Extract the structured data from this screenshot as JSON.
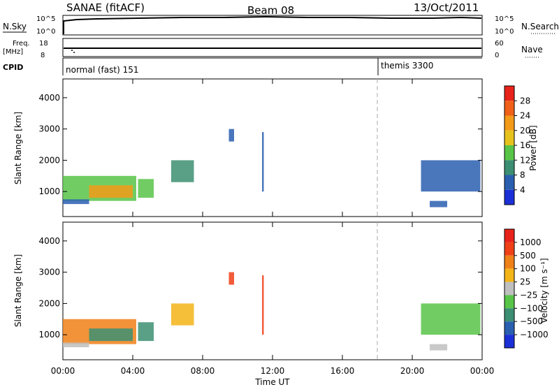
{
  "header": {
    "station": "SANAE (fitACF)",
    "beam": "Beam 08",
    "date": "13/Oct/2011"
  },
  "top_panels": {
    "nsky_label": "N.Sky",
    "nsky_ticks": [
      "10^5",
      "10^0"
    ],
    "nsearch_label": "N.Search",
    "nsearch_ticks": [
      "10^5",
      "10^0"
    ],
    "freq_label": "Freq.",
    "freq_unit": "[MHz]",
    "freq_ticks": [
      "18",
      "8"
    ],
    "nave_label": "Nave",
    "nave_ticks": [
      "60",
      "0"
    ],
    "cpid_label": "CPID",
    "cpid_modes": [
      {
        "text": "normal (fast) 151",
        "start_hour": 0
      },
      {
        "text": "themis 3300",
        "start_hour": 18
      }
    ]
  },
  "chart_data": [
    {
      "type": "heatmap",
      "title": "",
      "quantity": "Power",
      "xlabel": "",
      "ylabel": "Slant Range [km]",
      "xlim": [
        0,
        24
      ],
      "ylim": [
        200,
        4600
      ],
      "y_ticks": [
        1000,
        2000,
        3000,
        4000
      ],
      "colorbar_label": "Power [dB]",
      "colorbar_ticks": [
        "4",
        "8",
        "12",
        "16",
        "20",
        "24",
        "28"
      ],
      "colorbar_colors": [
        "#1b2fd6",
        "#2a5fb0",
        "#3c8f72",
        "#58c448",
        "#e6c21c",
        "#f39a18",
        "#f06018",
        "#e8231a"
      ],
      "regions": [
        {
          "t": [
            0.0,
            4.2
          ],
          "r": [
            700,
            1500
          ],
          "level": 3
        },
        {
          "t": [
            1.5,
            4.0
          ],
          "r": [
            800,
            1200
          ],
          "level": 5
        },
        {
          "t": [
            4.3,
            5.2
          ],
          "r": [
            800,
            1400
          ],
          "level": 3
        },
        {
          "t": [
            6.2,
            7.5
          ],
          "r": [
            1300,
            2000
          ],
          "level": 2
        },
        {
          "t": [
            0.0,
            1.5
          ],
          "r": [
            600,
            750
          ],
          "level": 1
        },
        {
          "t": [
            20.5,
            23.9
          ],
          "r": [
            1000,
            2000
          ],
          "level": 1
        },
        {
          "t": [
            21.0,
            22.0
          ],
          "r": [
            500,
            700
          ],
          "level": 1
        },
        {
          "t": [
            9.5,
            9.8
          ],
          "r": [
            2600,
            3000
          ],
          "level": 1
        },
        {
          "t": [
            11.4,
            11.5
          ],
          "r": [
            1000,
            2900
          ],
          "level": 1
        }
      ]
    },
    {
      "type": "heatmap",
      "title": "",
      "quantity": "Velocity",
      "xlabel": "Time UT",
      "ylabel": "Slant Range [km]",
      "xlim": [
        0,
        24
      ],
      "ylim": [
        200,
        4600
      ],
      "x_ticks": [
        "00:00",
        "04:00",
        "08:00",
        "12:00",
        "16:00",
        "20:00",
        "00:00"
      ],
      "y_ticks": [
        1000,
        2000,
        3000,
        4000
      ],
      "colorbar_label": "Velocity [m s⁻¹]",
      "colorbar_ticks": [
        "1000",
        "500",
        "100",
        "25",
        "−25",
        "−100",
        "−500",
        "−1000"
      ],
      "colorbar_colors": [
        "#1b2fd6",
        "#2a5fb0",
        "#3c8f72",
        "#58c448",
        "#bfbfbf",
        "#f3b418",
        "#f08018",
        "#f04018",
        "#e8231a"
      ],
      "regions": [
        {
          "t": [
            0.0,
            4.2
          ],
          "r": [
            700,
            1500
          ],
          "level": 6
        },
        {
          "t": [
            1.5,
            4.0
          ],
          "r": [
            800,
            1200
          ],
          "level": 2
        },
        {
          "t": [
            4.3,
            5.2
          ],
          "r": [
            800,
            1400
          ],
          "level": 2
        },
        {
          "t": [
            6.2,
            7.5
          ],
          "r": [
            1300,
            2000
          ],
          "level": 5
        },
        {
          "t": [
            0.0,
            1.5
          ],
          "r": [
            600,
            750
          ],
          "level": 4
        },
        {
          "t": [
            20.5,
            23.9
          ],
          "r": [
            1000,
            2000
          ],
          "level": 3
        },
        {
          "t": [
            21.0,
            22.0
          ],
          "r": [
            500,
            700
          ],
          "level": 4
        },
        {
          "t": [
            9.5,
            9.8
          ],
          "r": [
            2600,
            3000
          ],
          "level": 7
        },
        {
          "t": [
            11.4,
            11.5
          ],
          "r": [
            1000,
            2900
          ],
          "level": 7
        }
      ]
    }
  ]
}
